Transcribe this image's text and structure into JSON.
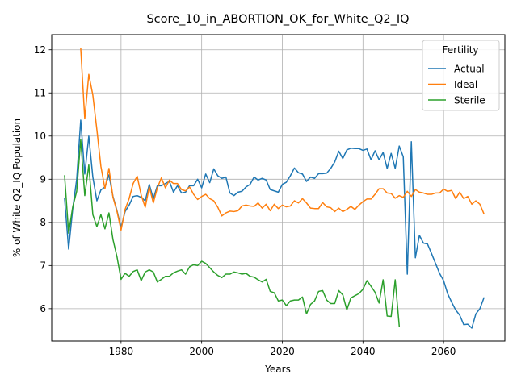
{
  "chart_data": {
    "type": "line",
    "title": "Score_10_in_ABORTION_OK_for_White_Q2_IQ",
    "xlabel": "Years",
    "ylabel": "% of White Q2_IQ Population",
    "xlim": [
      1962.8,
      2075.2
    ],
    "ylim": [
      5.25,
      12.35
    ],
    "xticks": [
      1980,
      2000,
      2020,
      2040,
      2060
    ],
    "yticks": [
      6,
      7,
      8,
      9,
      10,
      11,
      12
    ],
    "grid": true,
    "legend": {
      "title": "Fertility",
      "placement": "top-right"
    },
    "series": [
      {
        "name": "Actual",
        "color": "#1f77b4",
        "points": [
          [
            1966,
            8.55
          ],
          [
            1967,
            7.38
          ],
          [
            1968,
            8.3
          ],
          [
            1969,
            9.0
          ],
          [
            1970,
            10.37
          ],
          [
            1971,
            9.12
          ],
          [
            1972,
            10.0
          ],
          [
            1973,
            9.05
          ],
          [
            1974,
            8.5
          ],
          [
            1975,
            8.75
          ],
          [
            1976,
            8.82
          ],
          [
            1977,
            9.1
          ],
          [
            1978,
            8.6
          ],
          [
            1979,
            8.27
          ],
          [
            1980,
            7.88
          ],
          [
            1981,
            8.25
          ],
          [
            1982,
            8.4
          ],
          [
            1983,
            8.6
          ],
          [
            1984,
            8.62
          ],
          [
            1985,
            8.58
          ],
          [
            1986,
            8.5
          ],
          [
            1987,
            8.88
          ],
          [
            1988,
            8.55
          ],
          [
            1989,
            8.85
          ],
          [
            1990,
            8.85
          ],
          [
            1991,
            8.9
          ],
          [
            1992,
            8.95
          ],
          [
            1993,
            8.7
          ],
          [
            1994,
            8.85
          ],
          [
            1995,
            8.68
          ],
          [
            1996,
            8.7
          ],
          [
            1997,
            8.85
          ],
          [
            1998,
            8.85
          ],
          [
            1999,
            9.0
          ],
          [
            2000,
            8.8
          ],
          [
            2001,
            9.12
          ],
          [
            2002,
            8.92
          ],
          [
            2003,
            9.24
          ],
          [
            2004,
            9.08
          ],
          [
            2005,
            9.02
          ],
          [
            2006,
            9.05
          ],
          [
            2007,
            8.68
          ],
          [
            2008,
            8.62
          ],
          [
            2009,
            8.7
          ],
          [
            2010,
            8.72
          ],
          [
            2011,
            8.82
          ],
          [
            2012,
            8.88
          ],
          [
            2013,
            9.05
          ],
          [
            2014,
            8.98
          ],
          [
            2015,
            9.02
          ],
          [
            2016,
            8.98
          ],
          [
            2017,
            8.76
          ],
          [
            2018,
            8.73
          ],
          [
            2019,
            8.7
          ],
          [
            2020,
            8.88
          ],
          [
            2021,
            8.93
          ],
          [
            2022,
            9.08
          ],
          [
            2023,
            9.26
          ],
          [
            2024,
            9.15
          ],
          [
            2025,
            9.12
          ],
          [
            2026,
            8.95
          ],
          [
            2027,
            9.05
          ],
          [
            2028,
            9.02
          ],
          [
            2029,
            9.13
          ],
          [
            2030,
            9.13
          ],
          [
            2031,
            9.14
          ],
          [
            2032,
            9.25
          ],
          [
            2033,
            9.4
          ],
          [
            2034,
            9.65
          ],
          [
            2035,
            9.48
          ],
          [
            2036,
            9.68
          ],
          [
            2037,
            9.72
          ],
          [
            2038,
            9.71
          ],
          [
            2039,
            9.71
          ],
          [
            2040,
            9.67
          ],
          [
            2041,
            9.7
          ],
          [
            2042,
            9.45
          ],
          [
            2043,
            9.66
          ],
          [
            2044,
            9.45
          ],
          [
            2045,
            9.62
          ],
          [
            2046,
            9.25
          ],
          [
            2047,
            9.6
          ],
          [
            2048,
            9.25
          ],
          [
            2049,
            9.77
          ],
          [
            2050,
            9.52
          ],
          [
            2051,
            6.8
          ],
          [
            2052,
            9.87
          ],
          [
            2053,
            7.18
          ],
          [
            2054,
            7.7
          ],
          [
            2055,
            7.52
          ],
          [
            2056,
            7.5
          ],
          [
            2057,
            7.28
          ],
          [
            2058,
            7.05
          ],
          [
            2059,
            6.82
          ],
          [
            2060,
            6.65
          ],
          [
            2061,
            6.35
          ],
          [
            2062,
            6.15
          ],
          [
            2063,
            5.97
          ],
          [
            2064,
            5.85
          ],
          [
            2065,
            5.63
          ],
          [
            2066,
            5.64
          ],
          [
            2067,
            5.55
          ],
          [
            2068,
            5.88
          ],
          [
            2069,
            6.0
          ],
          [
            2070,
            6.25
          ]
        ]
      },
      {
        "name": "Ideal",
        "color": "#ff7f0e",
        "points": [
          [
            1970,
            12.03
          ],
          [
            1971,
            10.4
          ],
          [
            1972,
            11.43
          ],
          [
            1973,
            10.95
          ],
          [
            1974,
            10.15
          ],
          [
            1975,
            9.3
          ],
          [
            1976,
            8.78
          ],
          [
            1977,
            9.25
          ],
          [
            1978,
            8.58
          ],
          [
            1979,
            8.25
          ],
          [
            1980,
            7.82
          ],
          [
            1981,
            8.3
          ],
          [
            1982,
            8.55
          ],
          [
            1983,
            8.9
          ],
          [
            1984,
            9.07
          ],
          [
            1985,
            8.63
          ],
          [
            1986,
            8.35
          ],
          [
            1987,
            8.82
          ],
          [
            1988,
            8.45
          ],
          [
            1989,
            8.8
          ],
          [
            1990,
            9.03
          ],
          [
            1991,
            8.8
          ],
          [
            1992,
            8.98
          ],
          [
            1993,
            8.9
          ],
          [
            1994,
            8.9
          ],
          [
            1995,
            8.76
          ],
          [
            1996,
            8.73
          ],
          [
            1997,
            8.82
          ],
          [
            1998,
            8.65
          ],
          [
            1999,
            8.53
          ],
          [
            2000,
            8.6
          ],
          [
            2001,
            8.65
          ],
          [
            2002,
            8.55
          ],
          [
            2003,
            8.5
          ],
          [
            2004,
            8.35
          ],
          [
            2005,
            8.15
          ],
          [
            2006,
            8.22
          ],
          [
            2007,
            8.26
          ],
          [
            2008,
            8.25
          ],
          [
            2009,
            8.27
          ],
          [
            2010,
            8.38
          ],
          [
            2011,
            8.4
          ],
          [
            2012,
            8.38
          ],
          [
            2013,
            8.37
          ],
          [
            2014,
            8.45
          ],
          [
            2015,
            8.33
          ],
          [
            2016,
            8.42
          ],
          [
            2017,
            8.27
          ],
          [
            2018,
            8.42
          ],
          [
            2019,
            8.32
          ],
          [
            2020,
            8.4
          ],
          [
            2021,
            8.36
          ],
          [
            2022,
            8.38
          ],
          [
            2023,
            8.5
          ],
          [
            2024,
            8.45
          ],
          [
            2025,
            8.55
          ],
          [
            2026,
            8.45
          ],
          [
            2027,
            8.33
          ],
          [
            2028,
            8.32
          ],
          [
            2029,
            8.32
          ],
          [
            2030,
            8.46
          ],
          [
            2031,
            8.36
          ],
          [
            2032,
            8.34
          ],
          [
            2033,
            8.25
          ],
          [
            2034,
            8.33
          ],
          [
            2035,
            8.25
          ],
          [
            2036,
            8.3
          ],
          [
            2037,
            8.37
          ],
          [
            2038,
            8.3
          ],
          [
            2039,
            8.4
          ],
          [
            2040,
            8.48
          ],
          [
            2041,
            8.54
          ],
          [
            2042,
            8.54
          ],
          [
            2043,
            8.65
          ],
          [
            2044,
            8.78
          ],
          [
            2045,
            8.78
          ],
          [
            2046,
            8.68
          ],
          [
            2047,
            8.67
          ],
          [
            2048,
            8.56
          ],
          [
            2049,
            8.62
          ],
          [
            2050,
            8.58
          ],
          [
            2051,
            8.72
          ],
          [
            2052,
            8.6
          ],
          [
            2053,
            8.76
          ],
          [
            2054,
            8.7
          ],
          [
            2055,
            8.68
          ],
          [
            2056,
            8.65
          ],
          [
            2057,
            8.65
          ],
          [
            2058,
            8.68
          ],
          [
            2059,
            8.68
          ],
          [
            2060,
            8.77
          ],
          [
            2061,
            8.72
          ],
          [
            2062,
            8.74
          ],
          [
            2063,
            8.55
          ],
          [
            2064,
            8.7
          ],
          [
            2065,
            8.55
          ],
          [
            2066,
            8.6
          ],
          [
            2067,
            8.42
          ],
          [
            2068,
            8.5
          ],
          [
            2069,
            8.42
          ],
          [
            2070,
            8.2
          ]
        ]
      },
      {
        "name": "Sterile",
        "color": "#2ca02c",
        "points": [
          [
            1966,
            9.08
          ],
          [
            1967,
            7.75
          ],
          [
            1968,
            8.35
          ],
          [
            1969,
            8.72
          ],
          [
            1970,
            9.92
          ],
          [
            1971,
            8.62
          ],
          [
            1972,
            9.33
          ],
          [
            1973,
            8.18
          ],
          [
            1974,
            7.9
          ],
          [
            1975,
            8.18
          ],
          [
            1976,
            7.85
          ],
          [
            1977,
            8.22
          ],
          [
            1978,
            7.6
          ],
          [
            1979,
            7.2
          ],
          [
            1980,
            6.68
          ],
          [
            1981,
            6.82
          ],
          [
            1982,
            6.75
          ],
          [
            1983,
            6.86
          ],
          [
            1984,
            6.9
          ],
          [
            1985,
            6.65
          ],
          [
            1986,
            6.85
          ],
          [
            1987,
            6.9
          ],
          [
            1988,
            6.85
          ],
          [
            1989,
            6.62
          ],
          [
            1990,
            6.68
          ],
          [
            1991,
            6.75
          ],
          [
            1992,
            6.75
          ],
          [
            1993,
            6.83
          ],
          [
            1994,
            6.87
          ],
          [
            1995,
            6.9
          ],
          [
            1996,
            6.8
          ],
          [
            1997,
            6.97
          ],
          [
            1998,
            7.02
          ],
          [
            1999,
            7.0
          ],
          [
            2000,
            7.1
          ],
          [
            2001,
            7.05
          ],
          [
            2002,
            6.95
          ],
          [
            2003,
            6.85
          ],
          [
            2004,
            6.77
          ],
          [
            2005,
            6.72
          ],
          [
            2006,
            6.8
          ],
          [
            2007,
            6.8
          ],
          [
            2008,
            6.85
          ],
          [
            2009,
            6.83
          ],
          [
            2010,
            6.8
          ],
          [
            2011,
            6.82
          ],
          [
            2012,
            6.75
          ],
          [
            2013,
            6.73
          ],
          [
            2014,
            6.67
          ],
          [
            2015,
            6.62
          ],
          [
            2016,
            6.68
          ],
          [
            2017,
            6.4
          ],
          [
            2018,
            6.37
          ],
          [
            2019,
            6.18
          ],
          [
            2020,
            6.2
          ],
          [
            2021,
            6.07
          ],
          [
            2022,
            6.18
          ],
          [
            2023,
            6.2
          ],
          [
            2024,
            6.2
          ],
          [
            2025,
            6.27
          ],
          [
            2026,
            5.88
          ],
          [
            2027,
            6.1
          ],
          [
            2028,
            6.18
          ],
          [
            2029,
            6.4
          ],
          [
            2030,
            6.42
          ],
          [
            2031,
            6.2
          ],
          [
            2032,
            6.12
          ],
          [
            2033,
            6.12
          ],
          [
            2034,
            6.42
          ],
          [
            2035,
            6.32
          ],
          [
            2036,
            5.97
          ],
          [
            2037,
            6.25
          ],
          [
            2038,
            6.3
          ],
          [
            2039,
            6.35
          ],
          [
            2040,
            6.45
          ],
          [
            2041,
            6.65
          ],
          [
            2042,
            6.52
          ],
          [
            2043,
            6.38
          ],
          [
            2044,
            6.13
          ],
          [
            2045,
            6.67
          ],
          [
            2046,
            5.83
          ],
          [
            2047,
            5.82
          ],
          [
            2048,
            6.67
          ],
          [
            2049,
            5.6
          ]
        ]
      }
    ]
  }
}
